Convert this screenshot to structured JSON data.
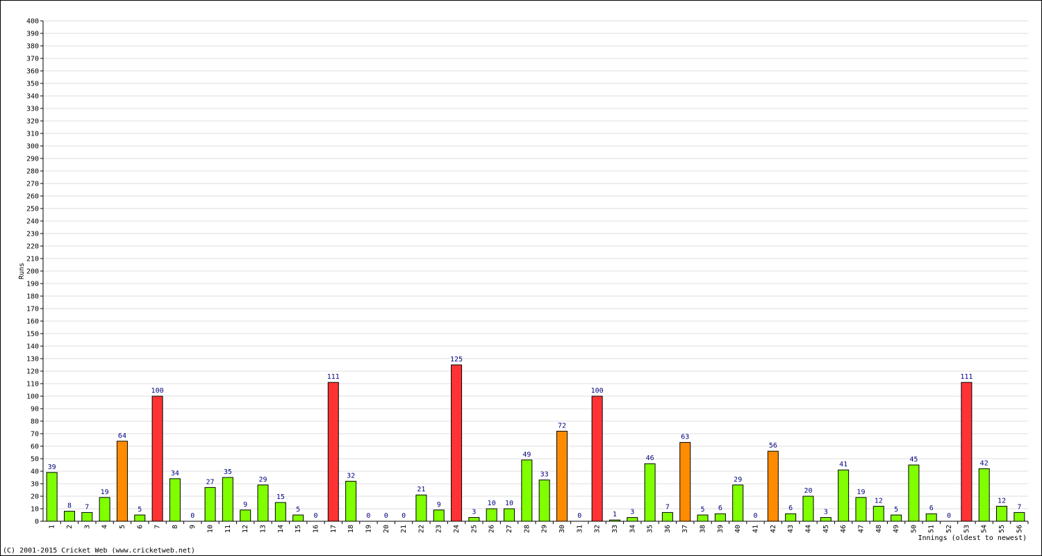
{
  "chart_data": {
    "type": "bar",
    "y_label": "Runs",
    "x_label": "Innings (oldest to newest)",
    "footer": "(C) 2001-2015 Cricket Web (www.cricketweb.net)",
    "categories": [
      "1",
      "2",
      "3",
      "4",
      "5",
      "6",
      "7",
      "8",
      "9",
      "10",
      "11",
      "12",
      "13",
      "14",
      "15",
      "16",
      "17",
      "18",
      "19",
      "20",
      "21",
      "22",
      "23",
      "24",
      "25",
      "26",
      "27",
      "28",
      "29",
      "30",
      "31",
      "32",
      "33",
      "34",
      "35",
      "36",
      "37",
      "38",
      "39",
      "40",
      "41",
      "42",
      "43",
      "44",
      "45",
      "46",
      "47",
      "48",
      "49",
      "50",
      "51",
      "52",
      "53",
      "54",
      "55",
      "56"
    ],
    "values": [
      39,
      8,
      7,
      19,
      64,
      5,
      100,
      34,
      0,
      27,
      35,
      9,
      29,
      15,
      5,
      0,
      111,
      32,
      0,
      0,
      0,
      21,
      9,
      125,
      3,
      10,
      10,
      49,
      33,
      72,
      0,
      100,
      1,
      3,
      46,
      7,
      63,
      5,
      6,
      29,
      0,
      56,
      6,
      20,
      3,
      41,
      19,
      12,
      5,
      45,
      6,
      0,
      111,
      42,
      12,
      7
    ],
    "colors": [
      "#80ff00",
      "#80ff00",
      "#80ff00",
      "#80ff00",
      "#ff8c00",
      "#80ff00",
      "#ff3333",
      "#80ff00",
      "#80ff00",
      "#80ff00",
      "#80ff00",
      "#80ff00",
      "#80ff00",
      "#80ff00",
      "#80ff00",
      "#80ff00",
      "#ff3333",
      "#80ff00",
      "#80ff00",
      "#80ff00",
      "#80ff00",
      "#80ff00",
      "#80ff00",
      "#ff3333",
      "#80ff00",
      "#80ff00",
      "#80ff00",
      "#80ff00",
      "#80ff00",
      "#ff8c00",
      "#80ff00",
      "#ff3333",
      "#80ff00",
      "#80ff00",
      "#80ff00",
      "#80ff00",
      "#ff8c00",
      "#80ff00",
      "#80ff00",
      "#80ff00",
      "#80ff00",
      "#ff8c00",
      "#80ff00",
      "#80ff00",
      "#80ff00",
      "#80ff00",
      "#80ff00",
      "#80ff00",
      "#80ff00",
      "#80ff00",
      "#80ff00",
      "#80ff00",
      "#ff3333",
      "#80ff00",
      "#80ff00",
      "#80ff00"
    ],
    "ylim": [
      0,
      400
    ],
    "yticks": [
      0,
      10,
      20,
      30,
      40,
      50,
      60,
      70,
      80,
      90,
      100,
      110,
      120,
      130,
      140,
      150,
      160,
      170,
      180,
      190,
      200,
      210,
      220,
      230,
      240,
      250,
      260,
      270,
      280,
      290,
      300,
      310,
      320,
      330,
      340,
      350,
      360,
      370,
      380,
      390,
      400
    ],
    "grid": true
  }
}
